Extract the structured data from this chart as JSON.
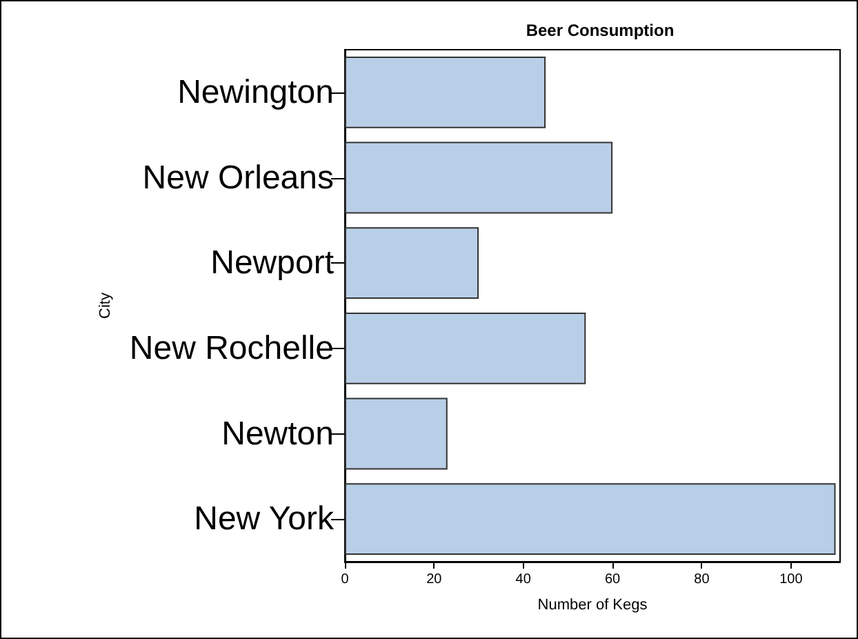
{
  "chart_data": {
    "type": "bar",
    "orientation": "horizontal",
    "title": "Beer Consumption",
    "xlabel": "Number of Kegs",
    "ylabel": "City",
    "categories": [
      "Newington",
      "New Orleans",
      "Newport",
      "New Rochelle",
      "Newton",
      "New York"
    ],
    "values": [
      45,
      60,
      30,
      54,
      23,
      110
    ],
    "color": "#b9cfe7",
    "xlim": [
      0,
      111
    ],
    "xticks": [
      0,
      20,
      40,
      60,
      80,
      100
    ],
    "grid": false
  }
}
